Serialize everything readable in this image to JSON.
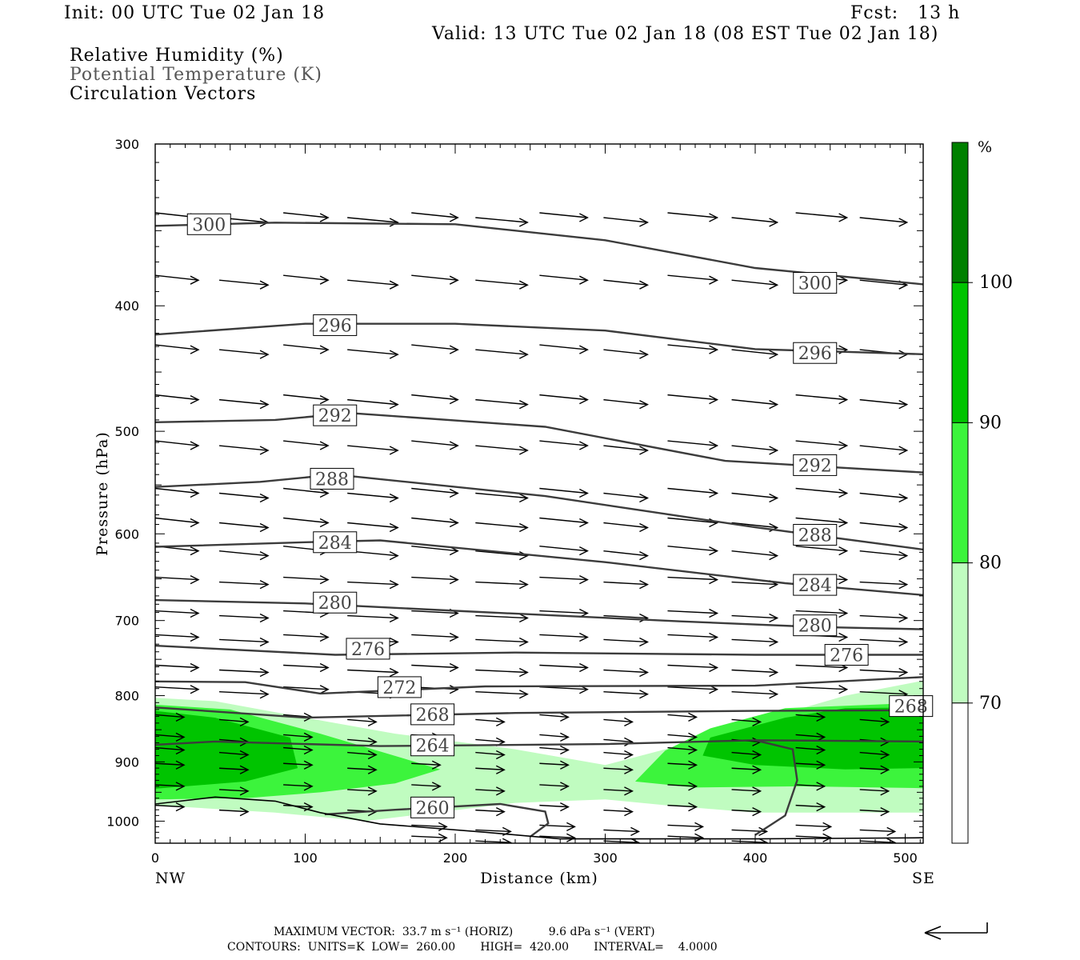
{
  "header": {
    "init": "Init: 00 UTC Tue 02 Jan 18",
    "fcst": "Fcst:   13 h",
    "valid": "Valid: 13 UTC Tue 02 Jan 18 (08 EST Tue 02 Jan 18)"
  },
  "legend": {
    "line1": "Relative Humidity (%)",
    "line2": "Potential Temperature (K)",
    "line3": "Circulation Vectors"
  },
  "footer": {
    "max_vector": "MAXIMUM VECTOR:  33.7 m s⁻¹ (HORIZ)          9.6 dPa s⁻¹ (VERT)",
    "contours": "CONTOURS:  UNITS=K  LOW=  260.00       HIGH=  420.00       INTERVAL=    4.0000"
  },
  "colors": {
    "rh70": "#c0fcc0",
    "rh80": "#3cf43c",
    "rh90": "#00c400",
    "rh100": "#008000",
    "contour": "#3c3c3c",
    "terrain": "#000000"
  },
  "chart_data": {
    "type": "cross-section",
    "xlabel": "Distance (km)",
    "ylabel": "Pressure (hPa)",
    "xlim": [
      0,
      512
    ],
    "ylim": [
      1040,
      300
    ],
    "y_scale": "log-pressure",
    "x_ticks": [
      0,
      100,
      200,
      300,
      400,
      500
    ],
    "y_ticks": [
      300,
      400,
      500,
      600,
      700,
      800,
      900,
      1000
    ],
    "x_end_labels": {
      "left": "NW",
      "right": "SE"
    },
    "colorbar": {
      "unit": "%",
      "levels": [
        70,
        80,
        90,
        100
      ],
      "colors": [
        "#ffffff",
        "#c0fcc0",
        "#3cf43c",
        "#00c400",
        "#008000"
      ]
    },
    "theta_contours": [
      {
        "value": 300,
        "label": "300",
        "points": [
          [
            0,
            347
          ],
          [
            80,
            345
          ],
          [
            200,
            346
          ],
          [
            300,
            356
          ],
          [
            400,
            374
          ],
          [
            512,
            385
          ]
        ],
        "label_at": [
          [
            22,
            346
          ],
          [
            426,
            384
          ]
        ]
      },
      {
        "value": 296,
        "label": "296",
        "points": [
          [
            0,
            421
          ],
          [
            100,
            413
          ],
          [
            200,
            413
          ],
          [
            300,
            418
          ],
          [
            400,
            432
          ],
          [
            512,
            436
          ]
        ],
        "label_at": [
          [
            106,
            414
          ],
          [
            426,
            435
          ]
        ]
      },
      {
        "value": 292,
        "label": "292",
        "points": [
          [
            0,
            492
          ],
          [
            80,
            490
          ],
          [
            130,
            484
          ],
          [
            260,
            496
          ],
          [
            380,
            527
          ],
          [
            512,
            538
          ]
        ],
        "label_at": [
          [
            106,
            486
          ],
          [
            426,
            531
          ]
        ]
      },
      {
        "value": 288,
        "label": "288",
        "points": [
          [
            0,
            552
          ],
          [
            70,
            547
          ],
          [
            120,
            540
          ],
          [
            260,
            561
          ],
          [
            400,
            593
          ],
          [
            512,
            617
          ]
        ],
        "label_at": [
          [
            104,
            544
          ],
          [
            426,
            601
          ]
        ]
      },
      {
        "value": 284,
        "label": "284",
        "points": [
          [
            0,
            614
          ],
          [
            100,
            609
          ],
          [
            150,
            607
          ],
          [
            300,
            631
          ],
          [
            420,
            655
          ],
          [
            512,
            669
          ]
        ],
        "label_at": [
          [
            106,
            609
          ],
          [
            426,
            657
          ]
        ]
      },
      {
        "value": 280,
        "label": "280",
        "points": [
          [
            0,
            675
          ],
          [
            100,
            679
          ],
          [
            200,
            688
          ],
          [
            350,
            701
          ],
          [
            440,
            708
          ],
          [
            512,
            711
          ]
        ],
        "label_at": [
          [
            106,
            678
          ],
          [
            426,
            706
          ]
        ]
      },
      {
        "value": 276,
        "label": "276",
        "points": [
          [
            0,
            732
          ],
          [
            120,
            744
          ],
          [
            240,
            741
          ],
          [
            400,
            744
          ],
          [
            512,
            744
          ]
        ],
        "label_at": [
          [
            128,
            736
          ],
          [
            447,
            744
          ]
        ]
      },
      {
        "value": 272,
        "label": "272",
        "points": [
          [
            0,
            780
          ],
          [
            60,
            781
          ],
          [
            110,
            797
          ],
          [
            220,
            787
          ],
          [
            400,
            786
          ],
          [
            512,
            774
          ]
        ],
        "label_at": [
          [
            149,
            788
          ]
        ]
      },
      {
        "value": 268,
        "label": "268",
        "points": [
          [
            0,
            817
          ],
          [
            100,
            832
          ],
          [
            240,
            825
          ],
          [
            400,
            822
          ],
          [
            512,
            821
          ]
        ],
        "label_at": [
          [
            171,
            827
          ],
          [
            490,
            815
          ]
        ]
      },
      {
        "value": 264,
        "label": "264",
        "points": [
          [
            0,
            873
          ],
          [
            40,
            868
          ],
          [
            150,
            875
          ],
          [
            300,
            872
          ],
          [
            400,
            866
          ],
          [
            512,
            868
          ]
        ],
        "label_at": [
          [
            171,
            874
          ]
        ]
      },
      {
        "value": 260,
        "label": "260",
        "points": [
          [
            113,
            988
          ],
          [
            160,
            980
          ],
          [
            230,
            970
          ],
          [
            260,
            983
          ],
          [
            262,
            1004
          ],
          [
            250,
            1028
          ]
        ],
        "label_at": [
          [
            171,
            976
          ]
        ]
      }
    ],
    "vectors": {
      "rows_hpa": [
        340,
        380,
        430,
        470,
        510,
        555,
        585,
        615,
        650,
        690,
        720,
        760,
        790,
        830,
        860,
        880,
        905,
        940,
        975,
        1010,
        1030
      ]
    },
    "rh_regions": [
      {
        "level": 70,
        "desc": "low-level moist layer spanning section, thinning near 250 km"
      },
      {
        "level": 80,
        "desc": "west and east lobes below 820 hPa"
      },
      {
        "level": 90,
        "desc": "cores near 0-90 km and 370-512 km"
      }
    ]
  }
}
